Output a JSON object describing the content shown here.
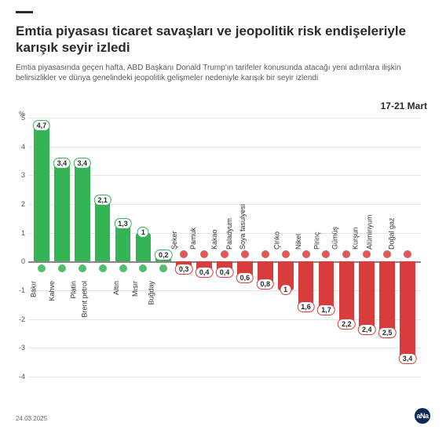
{
  "header": {
    "title": "Emtia piyasası ticaret savaşları ve jeopolitik risk endişeleriyle karışık seyir izledi",
    "subtitle": "Emtia piyasasında geçen hafta, ABD Başkanı Donald Trump'ın tarifeler konusunda atacağı yeni adımlara ilişkin belirsizlikler ve dünya genelindeki jeopolitik gelişmeler nedeniyle karışık bir seyir izlendi",
    "date_range": "17-21 Mart"
  },
  "chart": {
    "type": "bar",
    "y_unit": "%",
    "ylim": [
      -4,
      5
    ],
    "yticks": [
      -4,
      -3,
      -2,
      -1,
      0,
      1,
      2,
      3,
      4,
      5
    ],
    "zero_line_color": "#888888",
    "grid_color": "#e4e4e4",
    "pos_color": "#34b454",
    "neg_color": "#d93c3c",
    "pos_label_border": "#34b454",
    "neg_label_border": "#d93c3c",
    "background_color": "#ffffff",
    "categories": [
      {
        "label": "Bakır",
        "value": 4.7,
        "display": "4,7"
      },
      {
        "label": "Kahve",
        "value": 3.4,
        "display": "3,4"
      },
      {
        "label": "Platin",
        "value": 3.4,
        "display": "3,4"
      },
      {
        "label": "Brent petrol",
        "value": 2.1,
        "display": "2,1"
      },
      {
        "label": "Altın",
        "value": 1.3,
        "display": "1,3"
      },
      {
        "label": "Mısır",
        "value": 1.0,
        "display": "1"
      },
      {
        "label": "Buğday",
        "value": 0.2,
        "display": "0,2"
      },
      {
        "label": "Şeker",
        "value": -0.3,
        "display": "0,3"
      },
      {
        "label": "Pamuk",
        "value": -0.4,
        "display": "0,4"
      },
      {
        "label": "Kakao",
        "value": -0.4,
        "display": "0,4"
      },
      {
        "label": "Paladyum",
        "value": -0.6,
        "display": "0,6"
      },
      {
        "label": "Soya fasulyesi",
        "value": -0.8,
        "display": "0,8"
      },
      {
        "label": "Çinko",
        "value": -1.0,
        "display": "1"
      },
      {
        "label": "Nikel",
        "value": -1.6,
        "display": "1,6"
      },
      {
        "label": "Pirinç",
        "value": -1.7,
        "display": "1,7"
      },
      {
        "label": "Gümüş",
        "value": -2.2,
        "display": "2,2"
      },
      {
        "label": "Kurşun",
        "value": -2.4,
        "display": "2,4"
      },
      {
        "label": "Alüminyum",
        "value": -2.5,
        "display": "2,5"
      },
      {
        "label": "Doğal gaz",
        "value": -3.4,
        "display": "3,4"
      }
    ]
  },
  "footer": {
    "date": "24.03.2025",
    "logo_text": "aNa"
  }
}
